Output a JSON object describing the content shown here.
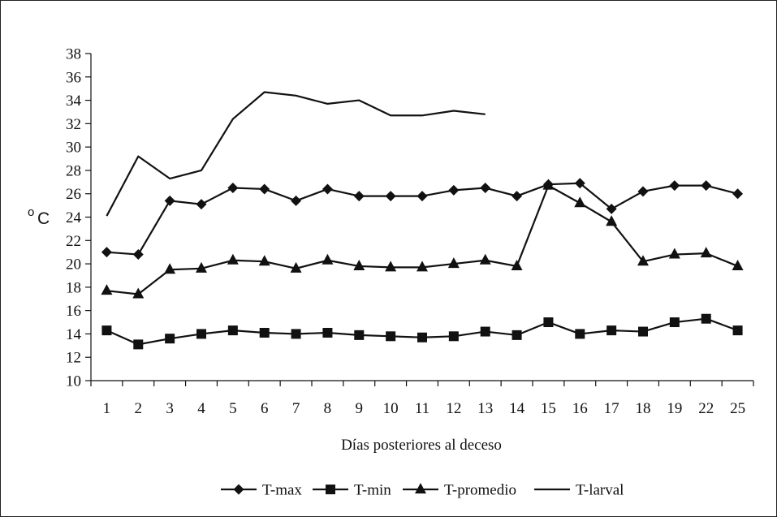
{
  "chart_data": {
    "type": "line",
    "categories": [
      "1",
      "2",
      "3",
      "4",
      "5",
      "6",
      "7",
      "8",
      "9",
      "10",
      "11",
      "12",
      "13",
      "14",
      "15",
      "16",
      "17",
      "18",
      "19",
      "22",
      "25"
    ],
    "xlabel": "Días posteriores al deceso",
    "ylabel_degree": "o",
    "ylabel_unit": "C",
    "ylim": [
      10,
      38
    ],
    "yticks": [
      10,
      12,
      14,
      16,
      18,
      20,
      22,
      24,
      26,
      28,
      30,
      32,
      34,
      36,
      38
    ],
    "grid": false,
    "legend_position": "bottom",
    "series": [
      {
        "name": "T-max",
        "marker": "diamond",
        "values": [
          21.0,
          20.8,
          25.4,
          25.1,
          26.5,
          26.4,
          25.4,
          26.4,
          25.8,
          25.8,
          25.8,
          26.3,
          26.5,
          25.8,
          26.8,
          26.9,
          24.7,
          26.2,
          26.7,
          26.7,
          26.0
        ]
      },
      {
        "name": "T-min",
        "marker": "square",
        "values": [
          14.3,
          13.1,
          13.6,
          14.0,
          14.3,
          14.1,
          14.0,
          14.1,
          13.9,
          13.8,
          13.7,
          13.8,
          14.2,
          13.9,
          15.0,
          14.0,
          14.3,
          14.2,
          15.0,
          15.3,
          14.3
        ]
      },
      {
        "name": "T-promedio",
        "marker": "triangle",
        "values": [
          17.7,
          17.4,
          19.5,
          19.6,
          20.3,
          20.2,
          19.6,
          20.3,
          19.8,
          19.7,
          19.7,
          20.0,
          20.3,
          19.8,
          26.7,
          25.2,
          23.6,
          20.2,
          20.8,
          20.9,
          19.8
        ]
      },
      {
        "name": "T-larval",
        "marker": "none",
        "values": [
          24.1,
          29.2,
          27.3,
          28.0,
          32.4,
          34.7,
          34.4,
          33.7,
          34.0,
          32.7,
          32.7,
          33.1,
          32.8,
          null,
          null,
          null,
          null,
          null,
          null,
          null,
          null
        ]
      }
    ]
  },
  "colors": {
    "line": "#111111",
    "frame": "#222222",
    "background": "#ffffff"
  }
}
